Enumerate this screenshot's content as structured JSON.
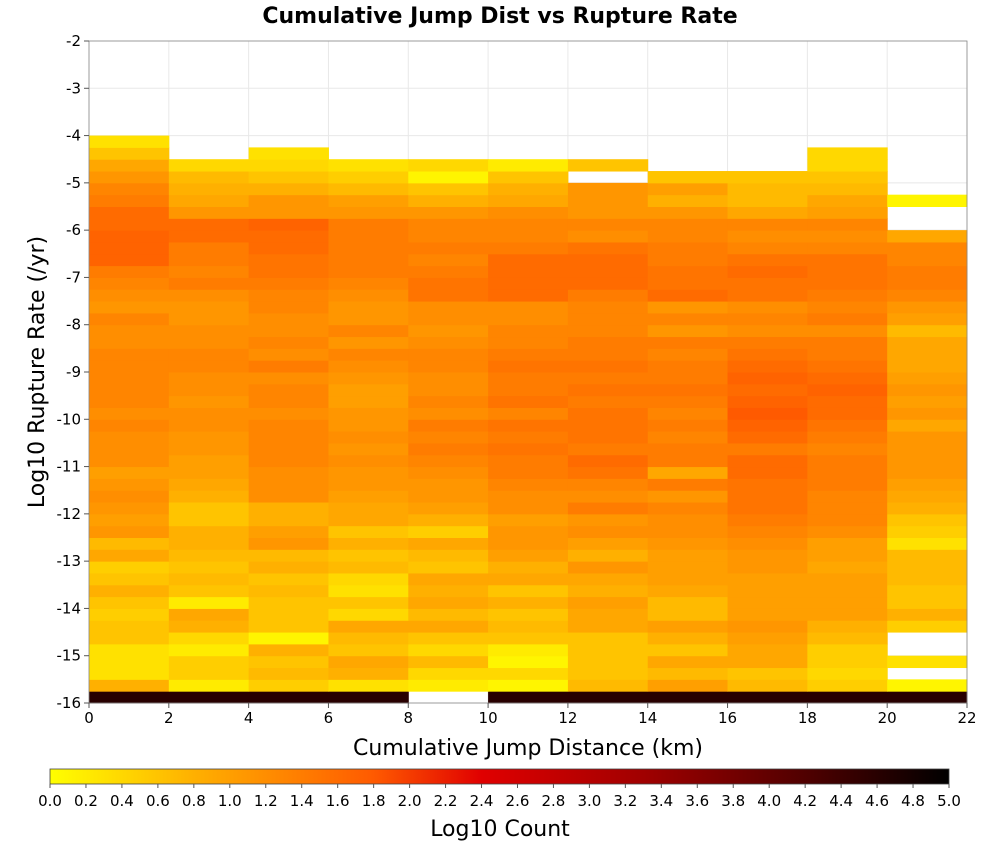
{
  "chart_data": {
    "type": "heatmap",
    "title": "Cumulative Jump Dist vs Rupture Rate",
    "xlabel": "Cumulative Jump Distance (km)",
    "ylabel": "Log10 Rupture Rate (/yr)",
    "colorbar_label": "Log10 Count",
    "xlim": [
      0,
      22
    ],
    "ylim": [
      -16,
      -2
    ],
    "x_ticks": [
      "0",
      "2",
      "4",
      "6",
      "8",
      "10",
      "12",
      "14",
      "16",
      "18",
      "20",
      "22"
    ],
    "y_ticks": [
      "-2",
      "-3",
      "-4",
      "-5",
      "-6",
      "-7",
      "-8",
      "-9",
      "-10",
      "-11",
      "-12",
      "-13",
      "-14",
      "-15",
      "-16"
    ],
    "colorbar_range": [
      0,
      5
    ],
    "colorbar_ticks": [
      "0.0",
      "0.2",
      "0.4",
      "0.6",
      "0.8",
      "1.0",
      "1.2",
      "1.4",
      "1.6",
      "1.8",
      "2.0",
      "2.2",
      "2.4",
      "2.6",
      "2.8",
      "3.0",
      "3.2",
      "3.4",
      "3.6",
      "3.8",
      "4.0",
      "4.2",
      "4.4",
      "4.6",
      "4.8",
      "5.0"
    ],
    "colormap": [
      "#ffff00",
      "#ffb000",
      "#ff5a00",
      "#e00000",
      "#a00000",
      "#500000",
      "#000000"
    ],
    "x_bin_edges": [
      0,
      2,
      4,
      6,
      8,
      10,
      12,
      14,
      16,
      18,
      20,
      22
    ],
    "y_bin_width": 0.25,
    "y_bin_start": -16.0,
    "cell_values": [
      [
        4.6,
        4.6,
        4.6,
        4.6,
        null,
        4.6,
        4.6,
        4.6,
        4.6,
        4.6,
        4.6
      ],
      [
        0.8,
        0.2,
        0.5,
        0.3,
        0.2,
        0.1,
        0.7,
        1.0,
        0.7,
        0.5,
        0.1
      ],
      [
        0.3,
        0.5,
        0.7,
        0.8,
        0.4,
        0.4,
        0.6,
        0.7,
        0.6,
        0.4,
        null
      ],
      [
        0.3,
        0.5,
        0.6,
        0.9,
        0.7,
        0.1,
        0.6,
        0.9,
        0.9,
        0.5,
        0.3
      ],
      [
        0.3,
        0.2,
        0.8,
        0.6,
        0.4,
        0.2,
        0.6,
        0.6,
        0.9,
        0.5,
        null
      ],
      [
        0.6,
        0.4,
        0.1,
        0.7,
        0.6,
        0.6,
        0.6,
        0.8,
        1.0,
        0.7,
        null
      ],
      [
        0.6,
        0.8,
        0.6,
        0.9,
        0.9,
        0.7,
        0.9,
        1.0,
        1.1,
        0.8,
        0.5
      ],
      [
        0.5,
        0.9,
        0.6,
        0.4,
        0.7,
        0.6,
        0.9,
        0.7,
        1.0,
        1.0,
        0.8
      ],
      [
        0.6,
        0.2,
        0.6,
        0.6,
        0.9,
        0.8,
        1.0,
        0.7,
        1.0,
        1.0,
        0.6
      ],
      [
        0.8,
        0.6,
        0.7,
        0.3,
        0.8,
        0.6,
        0.8,
        0.9,
        1.0,
        1.0,
        0.6
      ],
      [
        0.6,
        0.7,
        0.6,
        0.4,
        0.9,
        0.9,
        0.9,
        1.0,
        1.0,
        1.0,
        0.7
      ],
      [
        0.5,
        0.6,
        0.8,
        0.7,
        0.6,
        0.8,
        1.1,
        1.0,
        1.1,
        0.9,
        0.7
      ],
      [
        0.9,
        0.7,
        0.7,
        0.6,
        0.7,
        1.0,
        0.8,
        1.0,
        1.1,
        1.0,
        0.7
      ],
      [
        0.7,
        0.8,
        1.1,
        0.8,
        0.9,
        1.1,
        1.0,
        1.1,
        1.2,
        1.0,
        0.3
      ],
      [
        1.1,
        0.8,
        1.0,
        0.6,
        0.5,
        1.1,
        1.2,
        1.2,
        1.3,
        1.2,
        0.5
      ],
      [
        1.0,
        0.6,
        0.8,
        0.9,
        0.8,
        1.0,
        1.1,
        1.2,
        1.4,
        1.3,
        0.6
      ],
      [
        1.1,
        0.6,
        0.8,
        0.9,
        1.0,
        1.2,
        1.4,
        1.3,
        1.5,
        1.3,
        0.8
      ],
      [
        1.2,
        0.8,
        1.2,
        1.0,
        1.1,
        1.2,
        1.2,
        1.1,
        1.5,
        1.3,
        0.9
      ],
      [
        1.1,
        0.9,
        1.2,
        1.1,
        1.1,
        1.3,
        1.3,
        1.4,
        1.5,
        1.4,
        1.0
      ],
      [
        1.0,
        1.0,
        1.2,
        1.1,
        1.2,
        1.4,
        1.5,
        0.9,
        1.6,
        1.4,
        1.1
      ],
      [
        1.2,
        1.0,
        1.3,
        1.2,
        1.3,
        1.4,
        1.6,
        1.4,
        1.6,
        1.4,
        1.1
      ],
      [
        1.2,
        1.1,
        1.3,
        1.1,
        1.4,
        1.5,
        1.4,
        1.4,
        1.4,
        1.3,
        1.1
      ],
      [
        1.2,
        1.1,
        1.3,
        1.2,
        1.3,
        1.4,
        1.5,
        1.3,
        1.6,
        1.4,
        1.1
      ],
      [
        1.3,
        1.2,
        1.3,
        1.1,
        1.4,
        1.5,
        1.5,
        1.4,
        1.7,
        1.5,
        0.9
      ],
      [
        1.2,
        1.2,
        1.2,
        1.1,
        1.2,
        1.3,
        1.5,
        1.3,
        1.8,
        1.6,
        1.1
      ],
      [
        1.3,
        1.1,
        1.3,
        1.0,
        1.3,
        1.5,
        1.4,
        1.4,
        1.7,
        1.6,
        1.0
      ],
      [
        1.3,
        1.2,
        1.3,
        1.0,
        1.2,
        1.4,
        1.5,
        1.5,
        1.6,
        1.7,
        1.1
      ],
      [
        1.3,
        1.2,
        1.2,
        1.1,
        1.2,
        1.4,
        1.4,
        1.4,
        1.7,
        1.6,
        1.0
      ],
      [
        1.3,
        1.3,
        1.4,
        1.2,
        1.3,
        1.5,
        1.5,
        1.4,
        1.6,
        1.5,
        0.9
      ],
      [
        1.3,
        1.3,
        1.2,
        1.3,
        1.3,
        1.4,
        1.4,
        1.3,
        1.5,
        1.4,
        0.9
      ],
      [
        1.2,
        1.2,
        1.3,
        1.1,
        1.2,
        1.3,
        1.4,
        1.4,
        1.4,
        1.4,
        0.9
      ],
      [
        1.2,
        1.2,
        1.2,
        1.3,
        1.1,
        1.3,
        1.3,
        1.1,
        1.2,
        1.2,
        0.7
      ],
      [
        1.3,
        1.1,
        1.2,
        1.1,
        1.2,
        1.2,
        1.3,
        1.3,
        1.3,
        1.4,
        1.0
      ],
      [
        1.1,
        1.1,
        1.3,
        1.1,
        1.2,
        1.2,
        1.3,
        1.1,
        1.2,
        1.3,
        1.1
      ],
      [
        1.2,
        1.2,
        1.3,
        1.2,
        1.5,
        1.6,
        1.4,
        1.6,
        1.5,
        1.4,
        1.3
      ],
      [
        1.3,
        1.4,
        1.4,
        1.3,
        1.5,
        1.6,
        1.6,
        1.5,
        1.5,
        1.5,
        1.4
      ],
      [
        1.4,
        1.3,
        1.5,
        1.4,
        1.4,
        1.6,
        1.6,
        1.5,
        1.6,
        1.5,
        1.4
      ],
      [
        1.7,
        1.4,
        1.5,
        1.4,
        1.3,
        1.6,
        1.6,
        1.4,
        1.5,
        1.5,
        1.3
      ],
      [
        1.7,
        1.4,
        1.6,
        1.4,
        1.4,
        1.4,
        1.5,
        1.4,
        1.3,
        1.3,
        1.3
      ],
      [
        1.7,
        1.6,
        1.6,
        1.4,
        1.3,
        1.3,
        1.2,
        1.3,
        1.2,
        1.2,
        0.9
      ],
      [
        1.6,
        1.6,
        1.7,
        1.4,
        1.3,
        1.3,
        1.3,
        1.3,
        1.3,
        1.3,
        null
      ],
      [
        1.6,
        1.1,
        1.1,
        1.1,
        1.1,
        1.2,
        1.1,
        1.1,
        0.9,
        1.0,
        null
      ],
      [
        1.4,
        0.9,
        1.1,
        1.0,
        0.8,
        0.9,
        1.1,
        0.8,
        0.7,
        0.9,
        0.1
      ],
      [
        1.3,
        0.8,
        0.8,
        0.7,
        0.6,
        0.8,
        1.1,
        1.0,
        0.7,
        0.7,
        null
      ],
      [
        1.1,
        0.7,
        0.6,
        0.5,
        0.1,
        0.6,
        null,
        0.6,
        0.6,
        0.6,
        null
      ],
      [
        0.9,
        0.4,
        0.4,
        0.3,
        0.4,
        0.2,
        0.6,
        null,
        null,
        0.4,
        null
      ],
      [
        0.6,
        null,
        0.3,
        null,
        null,
        null,
        null,
        null,
        null,
        0.4,
        null
      ],
      [
        0.3,
        null,
        null,
        null,
        null,
        null,
        null,
        null,
        null,
        null,
        null
      ],
      [
        null,
        null,
        null,
        null,
        null,
        null,
        null,
        null,
        null,
        null,
        null
      ],
      [
        null,
        null,
        null,
        null,
        null,
        null,
        null,
        null,
        null,
        null,
        null
      ],
      [
        null,
        null,
        null,
        null,
        null,
        null,
        null,
        null,
        null,
        null,
        null
      ],
      [
        null,
        null,
        null,
        null,
        null,
        null,
        null,
        null,
        null,
        null,
        null
      ],
      [
        null,
        null,
        null,
        null,
        null,
        null,
        null,
        null,
        null,
        null,
        null
      ],
      [
        null,
        null,
        null,
        null,
        null,
        null,
        null,
        null,
        null,
        null,
        null
      ],
      [
        null,
        null,
        null,
        null,
        null,
        null,
        null,
        null,
        null,
        null,
        null
      ],
      [
        null,
        null,
        null,
        null,
        null,
        null,
        null,
        null,
        null,
        null,
        null
      ]
    ]
  }
}
